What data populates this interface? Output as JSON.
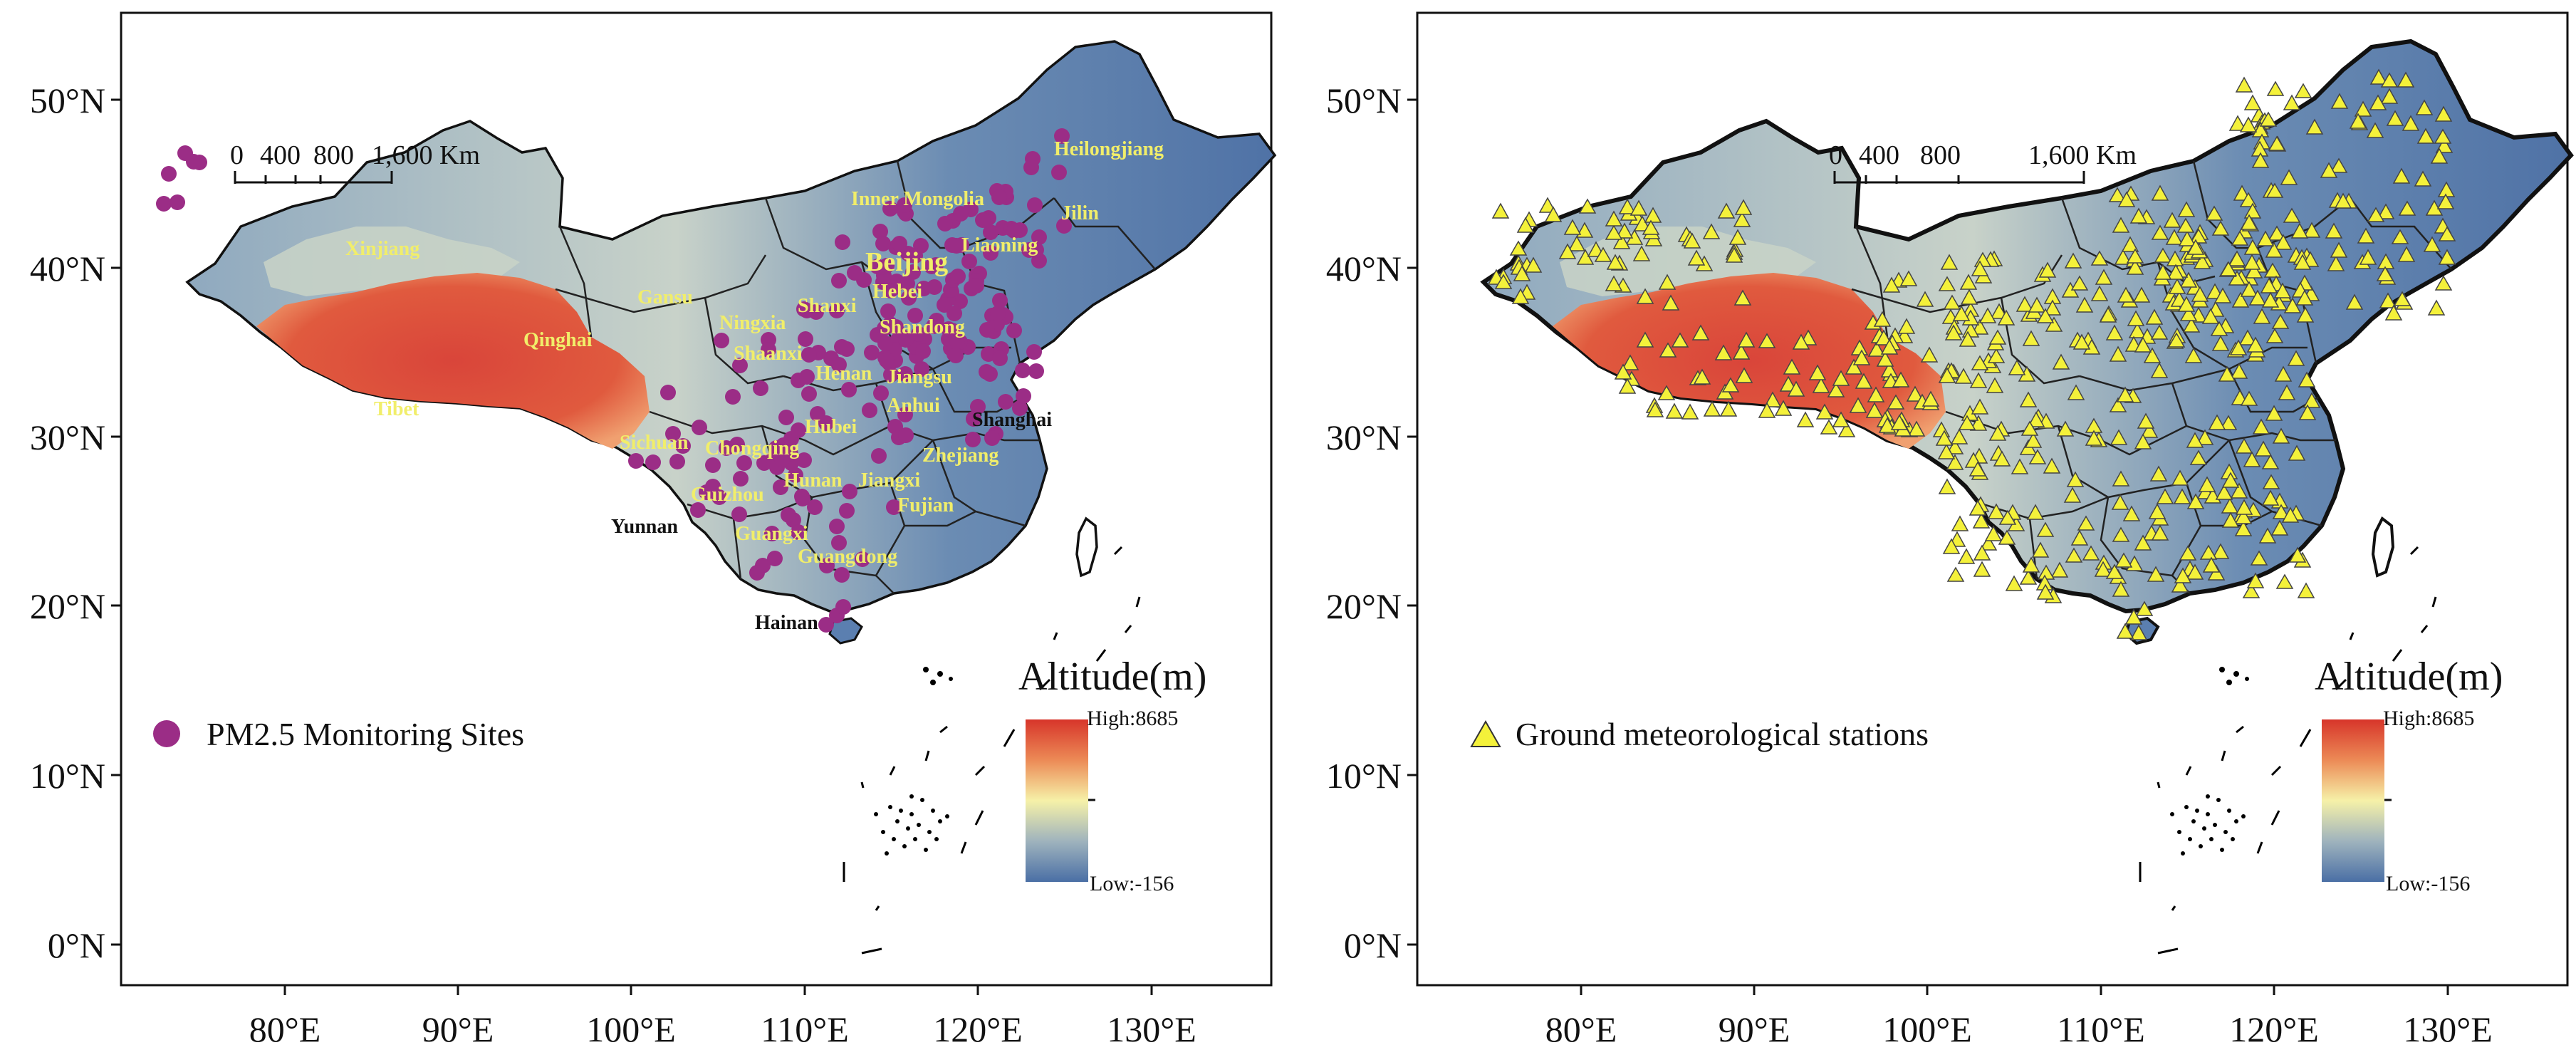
{
  "panels": [
    {
      "id": "left",
      "lat_labels": [
        "50°N",
        "40°N",
        "30°N",
        "20°N",
        "10°N",
        "0°N"
      ],
      "lon_labels": [
        "80°E",
        "90°E",
        "100°E",
        "110°E",
        "120°E",
        "130°E"
      ],
      "scale_labels": [
        "0",
        "400",
        "800",
        "1,600 Km"
      ],
      "legend_title": "Altitude(m)",
      "legend_high": "High:8685",
      "legend_low": "Low:-156",
      "point_legend": "PM2.5 Monitoring Sites",
      "provinces": [
        "Heilongjiang",
        "Jilin",
        "Inner Mongolia",
        "Liaoning",
        "Beijing",
        "Hebei",
        "Shanxi",
        "Shandong",
        "Xinjiang",
        "Qinghai",
        "Gansu",
        "Ningxia",
        "Shaanxi",
        "Henan",
        "Jiangsu",
        "Anhui",
        "Shanghai",
        "Tibet",
        "Sichuan",
        "Hubei",
        "Chongqing",
        "Zhejiang",
        "Hunan",
        "Jiangxi",
        "Guizhou",
        "Fujian",
        "Yunnan",
        "Guangxi",
        "Guangdong",
        "Hainan"
      ],
      "point_color": "#9b2d86"
    },
    {
      "id": "right",
      "lat_labels": [
        "50°N",
        "40°N",
        "30°N",
        "20°N",
        "10°N",
        "0°N"
      ],
      "lon_labels": [
        "80°E",
        "90°E",
        "100°E",
        "110°E",
        "120°E",
        "130°E"
      ],
      "scale_labels": [
        "0",
        "400",
        "800",
        "1,600 Km"
      ],
      "legend_title": "Altitude(m)",
      "legend_high": "High:8685",
      "legend_low": "Low:-156",
      "point_legend": "Ground meteorological stations",
      "point_color": "#f4f13a"
    }
  ],
  "colors": {
    "altitude_high": "#d7352a",
    "altitude_mid": "#f6f1a8",
    "altitude_low": "#4a6fa5"
  }
}
